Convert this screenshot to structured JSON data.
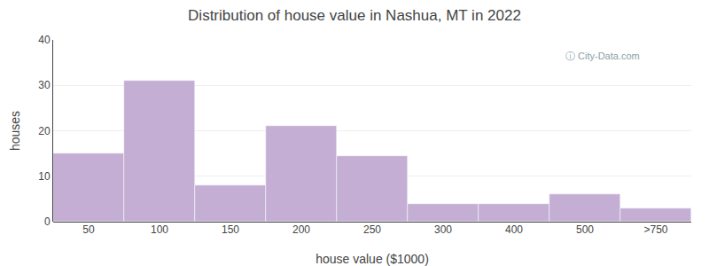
{
  "chart_data": {
    "type": "bar",
    "title": "Distribution of house value in Nashua, MT in 2022",
    "xlabel": "house value ($1000)",
    "ylabel": "houses",
    "categories": [
      "50",
      "100",
      "150",
      "200",
      "250",
      "300",
      "400",
      "500",
      ">750"
    ],
    "values": [
      15,
      31,
      8,
      21,
      14.5,
      4,
      4,
      6,
      3
    ],
    "color": "#c4aed4",
    "ylim": [
      0,
      40
    ],
    "yticks": [
      0,
      10,
      20,
      30,
      40
    ],
    "grid": true,
    "annotations": [
      "ⓘ City-Data.com"
    ]
  }
}
